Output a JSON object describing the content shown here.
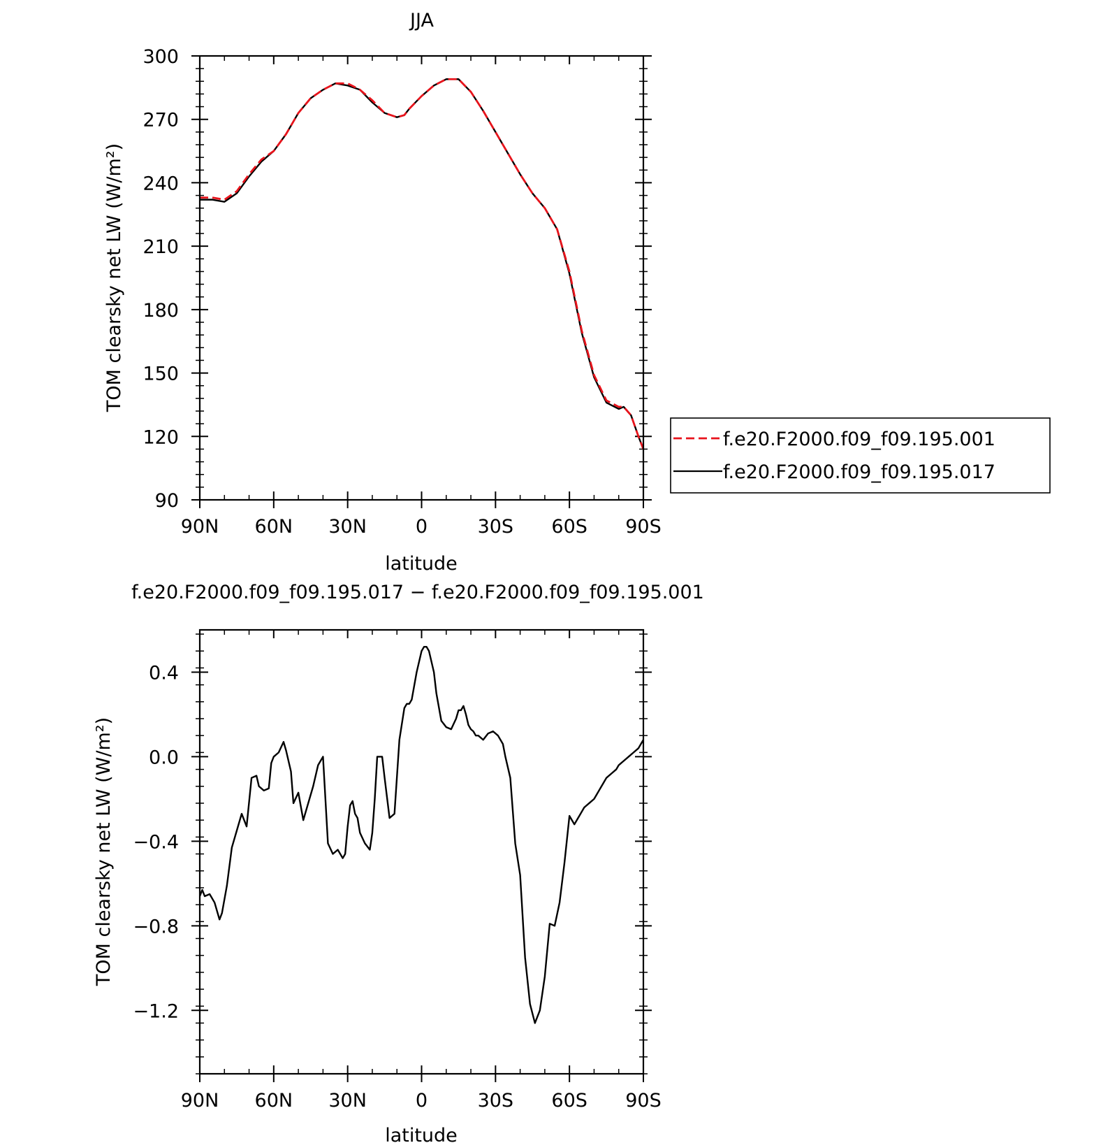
{
  "chart_data": [
    {
      "type": "line",
      "title": "JJA",
      "xlabel": "latitude",
      "ylabel": "TOM clearsky net LW (W/m²)",
      "xlim": [
        90,
        -90
      ],
      "ylim": [
        90,
        300
      ],
      "x_ticks": [
        90,
        60,
        30,
        0,
        -30,
        -60,
        -90
      ],
      "x_tick_labels": [
        "90N",
        "60N",
        "30N",
        "0",
        "30S",
        "60S",
        "90S"
      ],
      "y_ticks": [
        90,
        120,
        150,
        180,
        210,
        240,
        270,
        300
      ],
      "y_tick_labels": [
        "90",
        "120",
        "150",
        "180",
        "210",
        "240",
        "270",
        "300"
      ],
      "legend_position": "right",
      "series": [
        {
          "name": "f.e20.F2000.f09_f09.195.001",
          "color": "#e8141c",
          "dash": "dashed",
          "x": [
            90,
            85,
            80,
            75,
            70,
            65,
            60,
            55,
            50,
            45,
            40,
            35,
            30,
            25,
            20,
            15,
            10,
            7,
            5,
            0,
            -5,
            -10,
            -15,
            -20,
            -25,
            -30,
            -35,
            -40,
            -45,
            -50,
            -55,
            -60,
            -65,
            -70,
            -75,
            -80,
            -82,
            -85,
            -88,
            -90
          ],
          "y": [
            233,
            233,
            232,
            236,
            244,
            251,
            255,
            263,
            273,
            280,
            284,
            287,
            287,
            284,
            279,
            273,
            271,
            272,
            275,
            281,
            286,
            289,
            289,
            283,
            274,
            264,
            254,
            244,
            235,
            228,
            218,
            198,
            170,
            149,
            137,
            134,
            134,
            130,
            120,
            114
          ]
        },
        {
          "name": "f.e20.F2000.f09_f09.195.017",
          "color": "#000000",
          "dash": "solid",
          "x": [
            90,
            85,
            80,
            75,
            70,
            65,
            60,
            55,
            50,
            45,
            40,
            35,
            30,
            25,
            20,
            15,
            10,
            7,
            5,
            0,
            -5,
            -10,
            -15,
            -20,
            -25,
            -30,
            -35,
            -40,
            -45,
            -50,
            -55,
            -60,
            -65,
            -70,
            -75,
            -80,
            -82,
            -85,
            -88,
            -90
          ],
          "y": [
            232,
            232,
            231,
            235,
            243,
            250,
            255,
            263,
            273,
            280,
            284,
            287,
            286,
            284,
            278,
            273,
            271,
            272,
            275,
            281,
            286,
            289,
            289,
            283,
            274,
            264,
            254,
            244,
            235,
            228,
            218,
            197,
            169,
            148,
            136,
            133,
            134,
            130,
            120,
            114
          ]
        }
      ]
    },
    {
      "type": "line",
      "title": "f.e20.F2000.f09_f09.195.017 − f.e20.F2000.f09_f09.195.001",
      "xlabel": "latitude",
      "ylabel": "TOM clearsky net LW (W/m²)",
      "xlim": [
        90,
        -90
      ],
      "ylim": [
        -1.5,
        0.6
      ],
      "x_ticks": [
        90,
        60,
        30,
        0,
        -30,
        -60,
        -90
      ],
      "x_tick_labels": [
        "90N",
        "60N",
        "30N",
        "0",
        "30S",
        "60S",
        "90S"
      ],
      "y_ticks": [
        -1.2,
        -0.8,
        -0.4,
        0.0,
        0.4
      ],
      "y_tick_labels": [
        "−1.2",
        "−0.8",
        "−0.4",
        "0.0",
        "0.4"
      ],
      "series": [
        {
          "color": "#000000",
          "dash": "solid",
          "x": [
            90,
            89,
            88,
            86,
            84,
            82,
            81,
            79,
            77,
            75,
            73,
            71,
            69,
            67,
            66,
            64,
            62,
            61,
            60,
            58,
            56,
            55,
            53,
            52,
            50,
            48,
            46,
            44,
            42,
            40,
            38,
            36,
            35,
            34,
            32,
            31,
            30,
            29,
            28,
            27,
            26,
            25,
            23,
            21,
            20,
            19,
            18,
            16,
            15,
            13,
            11,
            9,
            7,
            6,
            5,
            4,
            2,
            0,
            -1,
            -2,
            -3,
            -5,
            -6,
            -8,
            -10,
            -12,
            -14,
            -15,
            -16,
            -17,
            -18,
            -19,
            -20,
            -21,
            -22,
            -23,
            -25,
            -27,
            -29,
            -31,
            -33,
            -34,
            -35,
            -36,
            -38,
            -40,
            -42,
            -44,
            -46,
            -48,
            -50,
            -52,
            -54,
            -56,
            -58,
            -60,
            -61,
            -62,
            -63,
            -64,
            -65,
            -66,
            -68,
            -70,
            -71,
            -72,
            -73,
            -74,
            -75,
            -77,
            -79,
            -80,
            -82,
            -84,
            -86,
            -88,
            -89,
            -90
          ],
          "y": [
            -0.66,
            -0.63,
            -0.66,
            -0.65,
            -0.69,
            -0.77,
            -0.74,
            -0.61,
            -0.43,
            -0.35,
            -0.27,
            -0.33,
            -0.1,
            -0.09,
            -0.14,
            -0.16,
            -0.15,
            -0.03,
            0.0,
            0.02,
            0.07,
            0.03,
            -0.07,
            -0.22,
            -0.17,
            -0.3,
            -0.22,
            -0.14,
            -0.04,
            0.0,
            -0.41,
            -0.46,
            -0.45,
            -0.44,
            -0.48,
            -0.46,
            -0.33,
            -0.23,
            -0.21,
            -0.27,
            -0.29,
            -0.36,
            -0.41,
            -0.44,
            -0.36,
            -0.2,
            0.0,
            0.0,
            -0.1,
            -0.29,
            -0.27,
            0.08,
            0.23,
            0.25,
            0.25,
            0.27,
            0.4,
            0.5,
            0.52,
            0.52,
            0.5,
            0.4,
            0.3,
            0.17,
            0.14,
            0.13,
            0.18,
            0.22,
            0.22,
            0.24,
            0.2,
            0.15,
            0.13,
            0.12,
            0.1,
            0.1,
            0.08,
            0.11,
            0.12,
            0.1,
            0.06,
            0.0,
            -0.05,
            -0.1,
            -0.41,
            -0.56,
            -0.95,
            -1.17,
            -1.26,
            -1.2,
            -1.04,
            -0.79,
            -0.8,
            -0.69,
            -0.5,
            -0.28,
            -0.3,
            -0.32,
            -0.3,
            -0.28,
            -0.26,
            -0.24,
            -0.22,
            -0.2,
            -0.18,
            -0.16,
            -0.14,
            -0.12,
            -0.1,
            -0.08,
            -0.06,
            -0.04,
            -0.02,
            0.0,
            0.02,
            0.04,
            0.06,
            0.08
          ]
        }
      ]
    }
  ]
}
